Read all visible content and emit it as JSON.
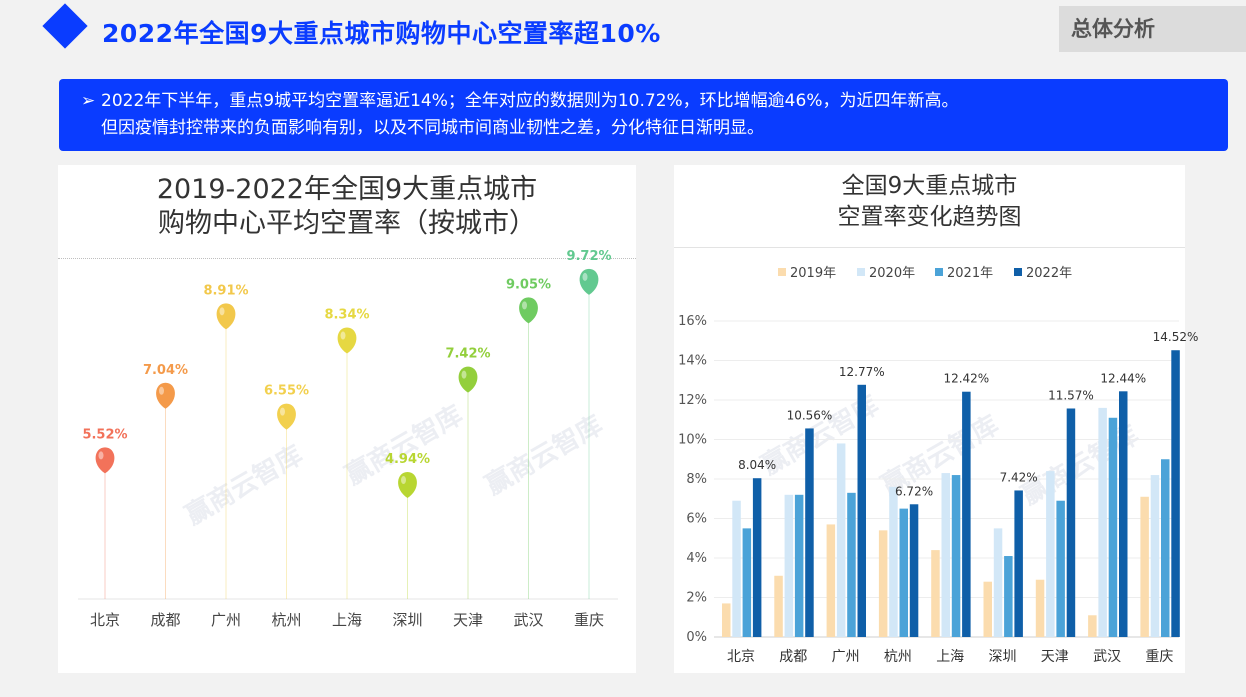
{
  "header": {
    "title": "2022年全国9大重点城市购物中心空置率超10%",
    "section_tag": "总体分析"
  },
  "summary": {
    "bullet": "➢",
    "line1": "2022年下半年，重点9城平均空置率逼近14%；全年对应的数据则为10.72%，环比增幅逾46%，为近四年新高。",
    "line2": "但因疫情封控带来的负面影响有别，以及不同城市间商业韧性之差，分化特征日渐明显。"
  },
  "watermark_text": "赢商云智库",
  "colors": {
    "brand_blue": "#0a3cff",
    "balloon_colors": [
      "#f2725a",
      "#f49a4a",
      "#f2c84b",
      "#f2d04e",
      "#e6d842",
      "#b8d632",
      "#93cf3c",
      "#6fcb61",
      "#62c990"
    ]
  },
  "chart_data": [
    {
      "type": "scatter",
      "title_line1": "2019-2022年全国9大重点城市",
      "title_line2": "购物中心平均空置率（按城市）",
      "categories": [
        "北京",
        "成都",
        "广州",
        "杭州",
        "上海",
        "深圳",
        "天津",
        "武汉",
        "重庆"
      ],
      "values": [
        5.52,
        7.04,
        8.91,
        6.55,
        8.34,
        4.94,
        7.42,
        9.05,
        9.72
      ],
      "labels": [
        "5.52%",
        "7.04%",
        "8.91%",
        "6.55%",
        "8.34%",
        "4.94%",
        "7.42%",
        "9.05%",
        "9.72%"
      ],
      "ylim": [
        0,
        11
      ],
      "legend": "none",
      "grid": false
    },
    {
      "type": "bar",
      "title_line1": "全国9大重点城市",
      "title_line2": "空置率变化趋势图",
      "categories": [
        "北京",
        "成都",
        "广州",
        "杭州",
        "上海",
        "深圳",
        "天津",
        "武汉",
        "重庆"
      ],
      "series": [
        {
          "name": "2019年",
          "color": "#fbdcae",
          "values": [
            1.7,
            3.1,
            5.7,
            5.4,
            4.4,
            2.8,
            2.9,
            1.1,
            7.1
          ]
        },
        {
          "name": "2020年",
          "color": "#d2e7f7",
          "values": [
            6.9,
            7.2,
            9.8,
            7.6,
            8.3,
            5.5,
            8.4,
            11.6,
            8.2
          ]
        },
        {
          "name": "2021年",
          "color": "#4ba3d8",
          "values": [
            5.5,
            7.2,
            7.3,
            6.5,
            8.2,
            4.1,
            6.9,
            11.1,
            9.0
          ]
        },
        {
          "name": "2022年",
          "color": "#0f5fa8",
          "values": [
            8.04,
            10.56,
            12.77,
            6.72,
            12.42,
            7.42,
            11.57,
            12.44,
            14.52
          ]
        }
      ],
      "data_labels": [
        "8.04%",
        "10.56%",
        "12.77%",
        "6.72%",
        "12.42%",
        "7.42%",
        "11.57%",
        "12.44%",
        "14.52%"
      ],
      "yticks": [
        "0%",
        "2%",
        "4%",
        "6%",
        "8%",
        "10%",
        "12%",
        "14%",
        "16%"
      ],
      "ylim": [
        0,
        16
      ],
      "legend": "top-center",
      "grid": true
    }
  ]
}
